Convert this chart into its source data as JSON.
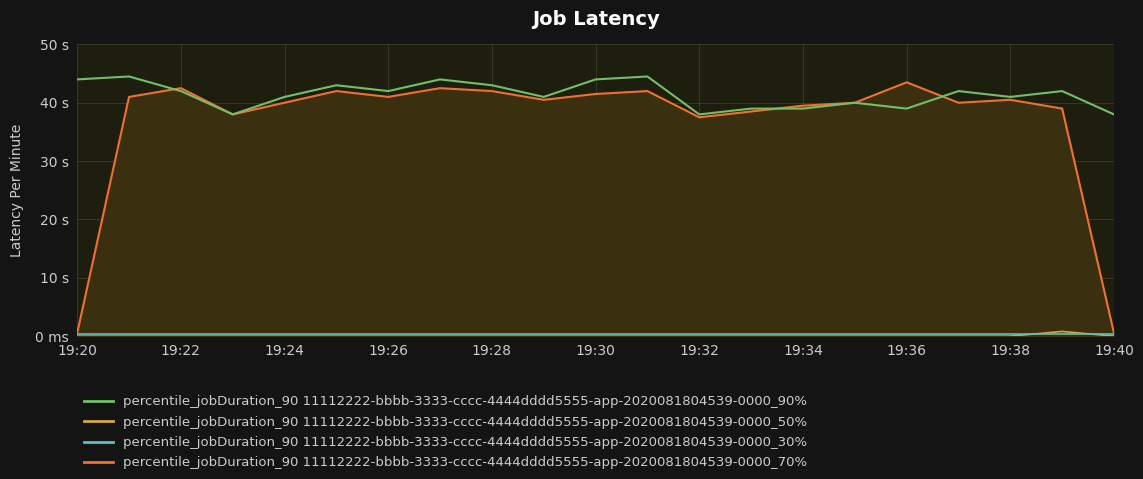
{
  "title": "Job Latency",
  "ylabel": "Latency Per Minute",
  "background_color": "#141414",
  "plot_bg_color": "#1e1e0e",
  "grid_color": "#444433",
  "text_color": "#cccccc",
  "ylim": [
    0,
    50
  ],
  "yticks": [
    0,
    10,
    20,
    30,
    40,
    50
  ],
  "ytick_labels": [
    "0 ms",
    "10 s",
    "20 s",
    "30 s",
    "40 s",
    "50 s"
  ],
  "xtick_labels": [
    "19:20",
    "19:22",
    "19:24",
    "19:26",
    "19:28",
    "19:30",
    "19:32",
    "19:34",
    "19:36",
    "19:38",
    "19:40"
  ],
  "x_values": [
    0,
    2,
    4,
    6,
    8,
    10,
    12,
    14,
    16,
    18,
    20
  ],
  "series_90": {
    "color": "#73bf69",
    "label": "percentile_jobDuration_90 11112222-bbbb-3333-cccc-4444dddd5555-app-2020081804539-0000_90%",
    "x": [
      0,
      1,
      2,
      3,
      4,
      5,
      6,
      7,
      8,
      9,
      10,
      11,
      12,
      13,
      14,
      15,
      16,
      17,
      18,
      19,
      20
    ],
    "y": [
      44,
      44.5,
      42,
      38,
      41,
      43,
      42,
      44,
      43,
      41,
      44,
      44.5,
      38,
      39,
      39,
      40,
      39,
      42,
      41,
      42,
      38
    ]
  },
  "series_50": {
    "color": "#d4a843",
    "label": "percentile_jobDuration_90 11112222-bbbb-3333-cccc-4444dddd5555-app-2020081804539-0000_50%",
    "x": [
      0,
      1,
      2,
      3,
      4,
      5,
      6,
      7,
      8,
      9,
      10,
      11,
      12,
      13,
      14,
      15,
      16,
      17,
      18,
      19,
      20
    ],
    "y": [
      0,
      0,
      0,
      0,
      0,
      0,
      0,
      0,
      0,
      0,
      0,
      0,
      0,
      0,
      0,
      0,
      0,
      0,
      0,
      0.8,
      0
    ]
  },
  "series_30": {
    "color": "#5cc0c0",
    "label": "percentile_jobDuration_90 11112222-bbbb-3333-cccc-4444dddd5555-app-2020081804539-0000_30%",
    "x": [
      0,
      1,
      2,
      3,
      4,
      5,
      6,
      7,
      8,
      9,
      10,
      11,
      12,
      13,
      14,
      15,
      16,
      17,
      18,
      19,
      20
    ],
    "y": [
      0.3,
      0.3,
      0.3,
      0.3,
      0.3,
      0.3,
      0.3,
      0.3,
      0.3,
      0.3,
      0.3,
      0.3,
      0.3,
      0.3,
      0.3,
      0.3,
      0.3,
      0.3,
      0.3,
      0.3,
      0.3
    ]
  },
  "series_70": {
    "color": "#f07030",
    "label": "percentile_jobDuration_90 11112222-bbbb-3333-cccc-4444dddd5555-app-2020081804539-0000_70%",
    "x": [
      0,
      1,
      2,
      3,
      4,
      5,
      6,
      7,
      8,
      9,
      10,
      11,
      12,
      13,
      14,
      15,
      16,
      17,
      18,
      19,
      20
    ],
    "y": [
      0.5,
      41,
      42.5,
      38,
      40,
      42,
      41,
      42.5,
      42,
      40.5,
      41.5,
      42,
      37.5,
      38.5,
      39.5,
      40,
      43.5,
      40,
      40.5,
      39,
      0.5
    ]
  },
  "fill_color": "#3a3010"
}
